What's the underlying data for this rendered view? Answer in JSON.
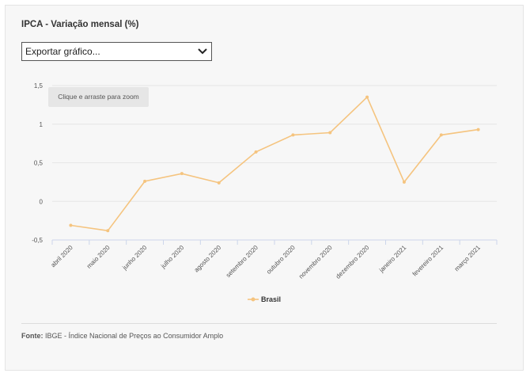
{
  "title": "IPCA - Variação mensal (%)",
  "export_menu": {
    "selected": "Exportar gráfico...",
    "icon": "chevron-down-icon"
  },
  "zoom_hint": "Clique e arraste para zoom",
  "source": {
    "label": "Fonte:",
    "text": "IBGE - Índice Nacional de Preços ao Consumidor Amplo"
  },
  "colors": {
    "series": "#f5c47f",
    "grid": "#e6e6e6",
    "axis": "#ccd6eb",
    "card": "#f7f7f7"
  },
  "chart_data": {
    "type": "line",
    "title": "IPCA - Variação mensal (%)",
    "xlabel": "",
    "ylabel": "",
    "categories": [
      "abril 2020",
      "maio 2020",
      "junho 2020",
      "julho 2020",
      "agosto 2020",
      "setembro 2020",
      "outubro 2020",
      "novembro 2020",
      "dezembro 2020",
      "janeiro 2021",
      "fevereiro 2021",
      "março 2021"
    ],
    "series": [
      {
        "name": "Brasil",
        "values": [
          -0.31,
          -0.38,
          0.26,
          0.36,
          0.24,
          0.64,
          0.86,
          0.89,
          1.35,
          0.25,
          0.86,
          0.93
        ]
      }
    ],
    "ylim": [
      -0.5,
      1.5
    ],
    "yticks": [
      1.5,
      1,
      0.5,
      0,
      -0.5
    ],
    "ytick_labels": [
      "1,5",
      "1",
      "0,5",
      "0",
      "-0,5"
    ],
    "grid": true,
    "legend": "bottom-center"
  }
}
